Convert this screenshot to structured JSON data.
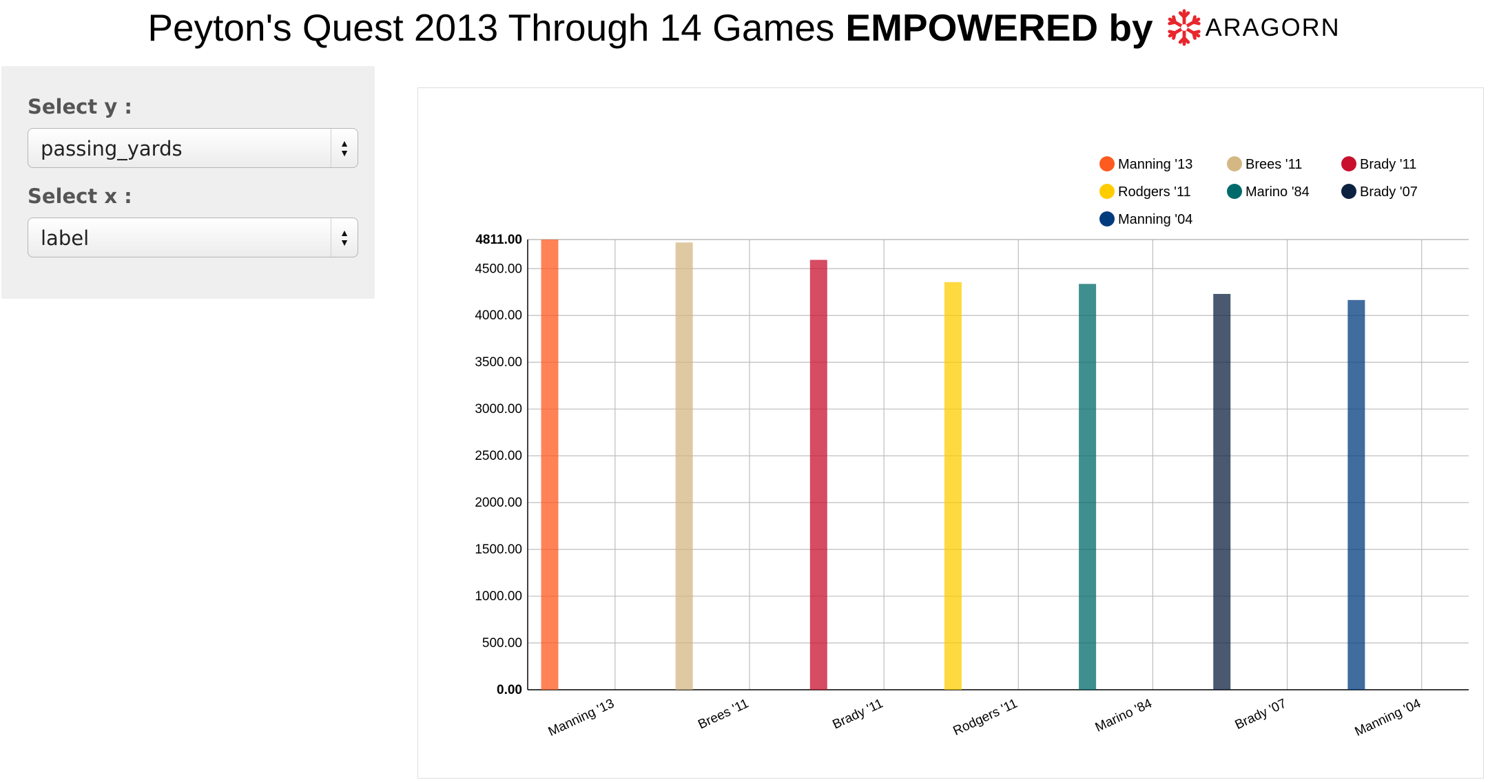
{
  "header": {
    "title_normal": "Peyton's Quest 2013 Through 14 Games",
    "title_bold": "EMPOWERED by",
    "logo_text": "ARAGORN"
  },
  "sidebar": {
    "y_label": "Select y :",
    "y_value": "passing_yards",
    "x_label": "Select x :",
    "x_value": "label"
  },
  "colors": {
    "Manning '13": "#ff5a1f",
    "Brees '11": "#d4b783",
    "Brady '11": "#c8102e",
    "Rodgers '11": "#ffcc00",
    "Marino '84": "#006a6a",
    "Brady '07": "#0d2240",
    "Manning '04": "#003b7e"
  },
  "chart_data": {
    "type": "bar",
    "categories": [
      "Manning '13",
      "Brees '11",
      "Brady '11",
      "Rodgers '11",
      "Marino '84",
      "Brady '07",
      "Manning '04"
    ],
    "values": [
      4811,
      4780,
      4594,
      4356,
      4337,
      4230,
      4165
    ],
    "legend": [
      "Manning '13",
      "Brees '11",
      "Brady '11",
      "Rodgers '11",
      "Marino '84",
      "Brady '07",
      "Manning '04"
    ],
    "y_ticks": [
      "0.00",
      "500.00",
      "1000.00",
      "1500.00",
      "2000.00",
      "2500.00",
      "3000.00",
      "3500.00",
      "4000.00",
      "4500.00"
    ],
    "y_max_label": "4811.00",
    "ylim": [
      0,
      4811
    ],
    "grid": true,
    "legend_position": "top-right",
    "title": "",
    "xlabel": "",
    "ylabel": ""
  }
}
